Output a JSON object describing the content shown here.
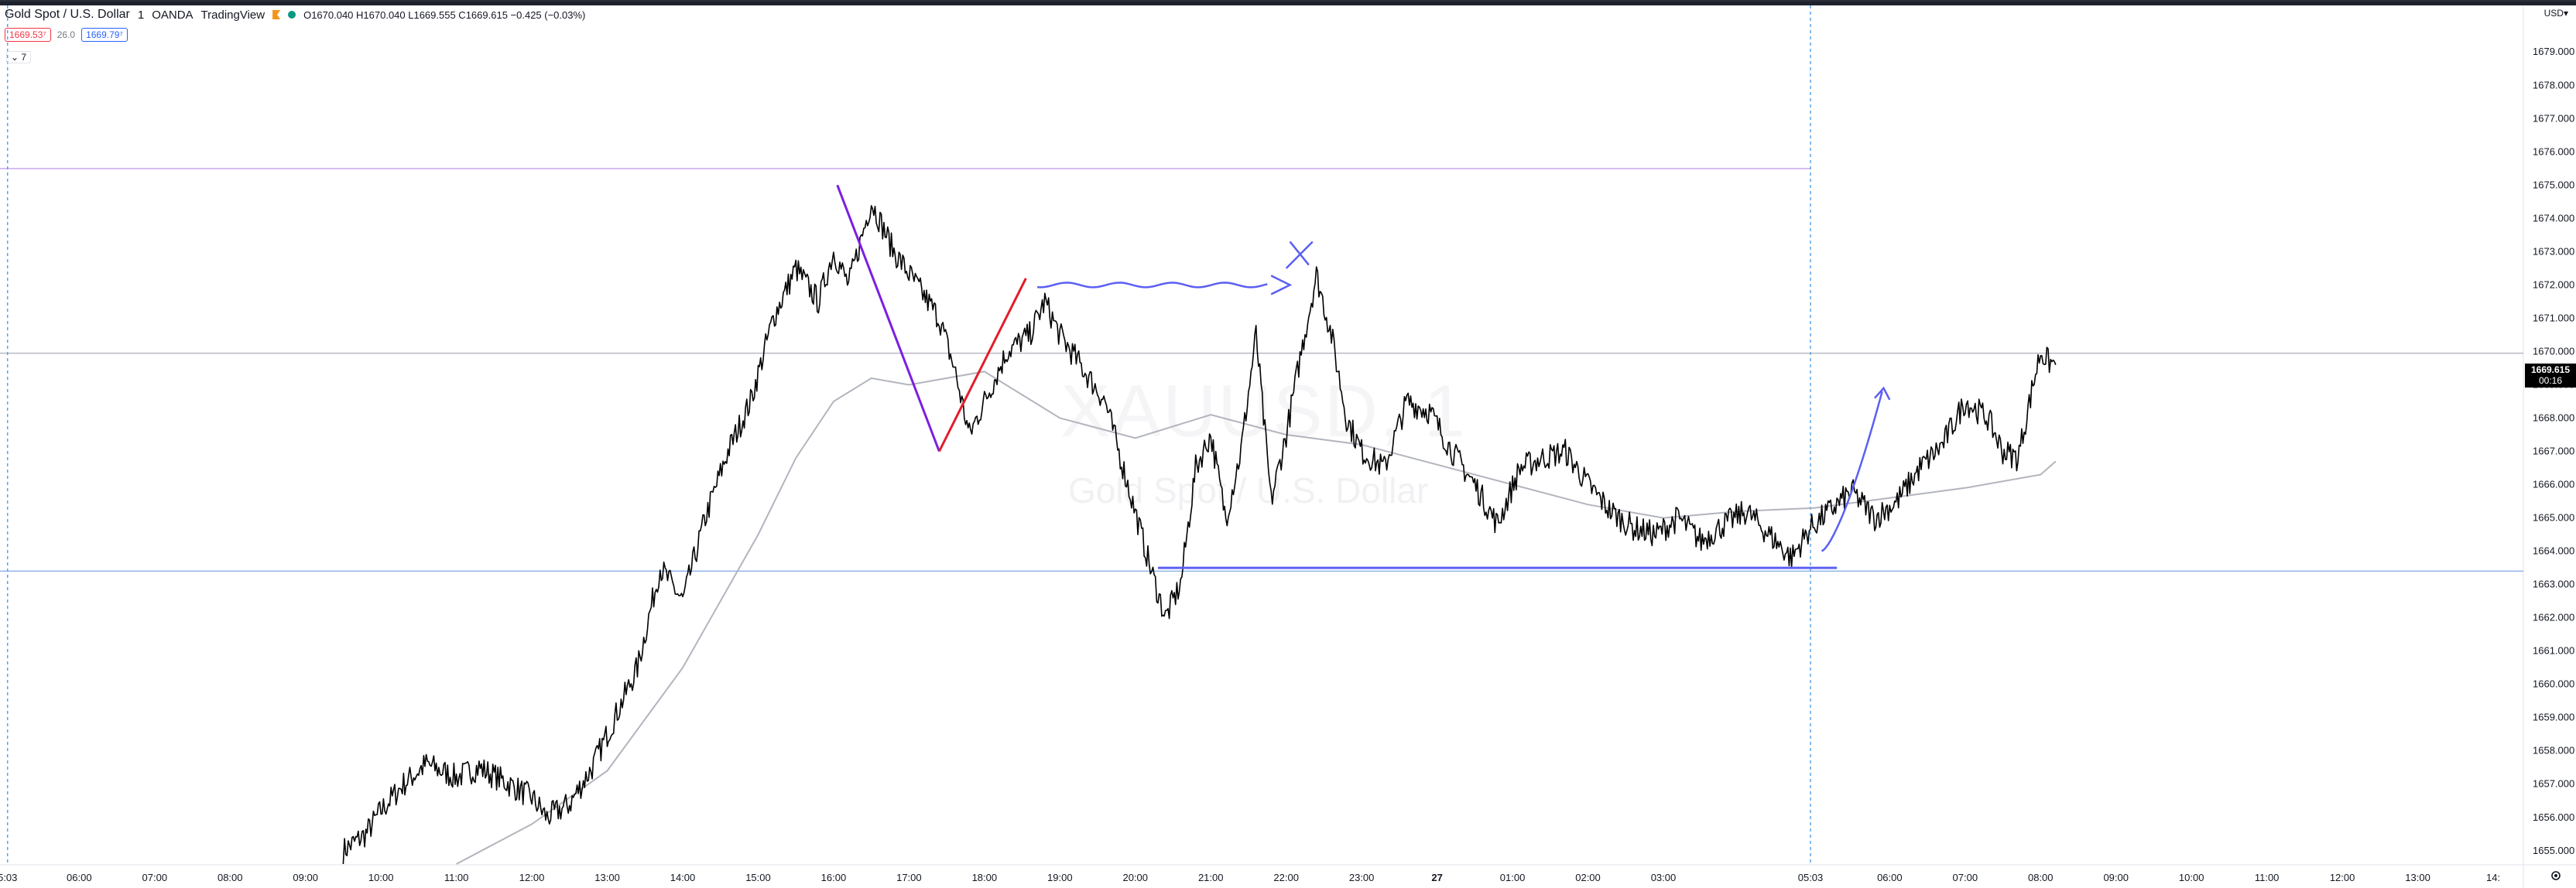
{
  "header": {
    "symbol": "Gold Spot / U.S. Dollar",
    "interval": "1",
    "broker": "OANDA",
    "platform": "TradingView",
    "ohlc": "O1670.040  H1670.040  L1669.555  C1669.615  −0.425 (−0.03%)",
    "sell_price": "1669.53⁷",
    "spread": "26.0",
    "buy_price": "1669.79⁷",
    "indicators_toggle": "7",
    "currency": "USD"
  },
  "watermark": {
    "ticker": "XAUUSD, 1",
    "description": "Gold Spot / U.S. Dollar"
  },
  "last_price": {
    "value": "1669.615",
    "countdown": "00:16"
  },
  "colors": {
    "background": "#ffffff",
    "candle": "#000000",
    "moving_average": "#b2b5be",
    "drawing_purple": "#7b1fe0",
    "drawing_red": "#e31c2b",
    "drawing_blue": "#5b5ff2"
  },
  "chart_data": {
    "type": "line",
    "title": "",
    "xlabel": "",
    "ylabel": "",
    "ylim": [
      1654.6,
      1680.4
    ],
    "y_ticks": [
      "1655.000",
      "1656.000",
      "1657.000",
      "1658.000",
      "1659.000",
      "1660.000",
      "1661.000",
      "1662.000",
      "1663.000",
      "1664.000",
      "1665.000",
      "1666.000",
      "1667.000",
      "1668.000",
      "1669.000",
      "1670.000",
      "1671.000",
      "1672.000",
      "1673.000",
      "1674.000",
      "1675.000",
      "1676.000",
      "1677.000",
      "1678.000",
      "1679.000"
    ],
    "x_ticks": [
      "5:03",
      "06:00",
      "07:00",
      "08:00",
      "09:00",
      "10:00",
      "11:00",
      "12:00",
      "13:00",
      "14:00",
      "15:00",
      "16:00",
      "17:00",
      "18:00",
      "19:00",
      "20:00",
      "21:00",
      "22:00",
      "23:00",
      "27",
      "01:00",
      "02:00",
      "03:00",
      "05:03",
      "06:00",
      "07:00",
      "08:00",
      "09:00",
      "10:00",
      "11:00",
      "12:00",
      "13:00",
      "14:"
    ],
    "x_tick_hours": [
      -0.95,
      0,
      1,
      2,
      3,
      4,
      5,
      6,
      7,
      8,
      9,
      10,
      11,
      12,
      13,
      14,
      15,
      16,
      17,
      18,
      19,
      20,
      21,
      22.95,
      24,
      25,
      26,
      27,
      28,
      29,
      30,
      31,
      32
    ],
    "series": [
      {
        "x_hours": [
          3.5,
          3.8,
          4.0,
          4.3,
          4.6,
          5.0,
          5.3,
          5.7,
          6.0,
          6.2,
          6.5,
          6.8,
          7.1,
          7.4,
          7.7,
          8.0,
          8.3,
          8.6,
          8.9,
          9.2,
          9.5,
          9.8,
          10.0,
          10.2,
          10.5,
          10.8,
          11.1,
          11.4,
          11.6,
          11.8,
          12.0,
          12.3,
          12.6,
          12.8,
          13.0,
          13.3,
          13.6,
          13.9,
          14.2,
          14.4,
          14.6,
          14.8,
          15.0,
          15.2,
          15.4,
          15.6,
          15.8,
          16.0,
          16.2,
          16.4,
          16.6,
          16.8,
          17.0,
          17.3,
          17.6,
          17.9,
          18.2,
          18.5,
          18.8,
          19.1,
          19.4,
          19.7,
          20.0,
          20.3,
          20.6,
          20.9,
          21.2,
          21.5,
          21.8,
          22.1,
          22.4,
          22.7,
          22.95,
          23.2,
          23.5,
          23.8,
          24.1,
          24.4,
          24.7,
          25.0,
          25.3,
          25.5,
          25.7,
          25.9,
          26.0,
          26.1,
          26.2
        ],
        "name": "",
        "values": [
          1655.0,
          1655.5,
          1656.2,
          1657.0,
          1657.6,
          1657.2,
          1657.5,
          1657.0,
          1656.6,
          1656.0,
          1656.4,
          1657.5,
          1659.0,
          1660.5,
          1663.5,
          1662.5,
          1665.0,
          1667.0,
          1668.5,
          1671.0,
          1672.5,
          1671.5,
          1673.0,
          1672.0,
          1674.5,
          1673.0,
          1672.0,
          1671.0,
          1669.5,
          1667.5,
          1668.5,
          1670.0,
          1670.5,
          1671.5,
          1670.5,
          1669.5,
          1668.5,
          1666.0,
          1663.5,
          1662.0,
          1663.0,
          1666.5,
          1667.5,
          1665.0,
          1667.0,
          1670.5,
          1665.5,
          1667.5,
          1670.0,
          1672.3,
          1670.5,
          1668.0,
          1667.0,
          1666.5,
          1668.5,
          1668.2,
          1667.0,
          1666.0,
          1664.8,
          1666.5,
          1666.8,
          1667.0,
          1666.0,
          1665.2,
          1664.7,
          1664.5,
          1665.0,
          1664.3,
          1664.8,
          1665.2,
          1664.5,
          1663.8,
          1664.7,
          1665.2,
          1665.8,
          1665.0,
          1665.5,
          1666.5,
          1667.2,
          1668.5,
          1668.0,
          1667.0,
          1666.8,
          1669.0,
          1670.0,
          1669.7,
          1669.6
        ]
      },
      {
        "x_hours": [
          5.0,
          6.0,
          7.0,
          8.0,
          9.0,
          9.5,
          10.0,
          10.5,
          11.0,
          12.0,
          13.0,
          14.0,
          15.0,
          16.0,
          17.0,
          18.0,
          19.0,
          20.0,
          21.0,
          22.0,
          23.0,
          24.0,
          25.0,
          26.0,
          26.2
        ],
        "name": "",
        "values": [
          1654.6,
          1655.8,
          1657.4,
          1660.5,
          1664.5,
          1666.8,
          1668.5,
          1669.2,
          1669.0,
          1669.4,
          1668.0,
          1667.4,
          1668.1,
          1667.5,
          1667.2,
          1666.6,
          1666.0,
          1665.4,
          1665.0,
          1665.2,
          1665.3,
          1665.6,
          1665.9,
          1666.3,
          1666.7
        ]
      }
    ],
    "horizontal_lines": [
      1675.5,
      1669.95,
      1663.4
    ],
    "vertical_line_hours": [
      22.95
    ]
  }
}
